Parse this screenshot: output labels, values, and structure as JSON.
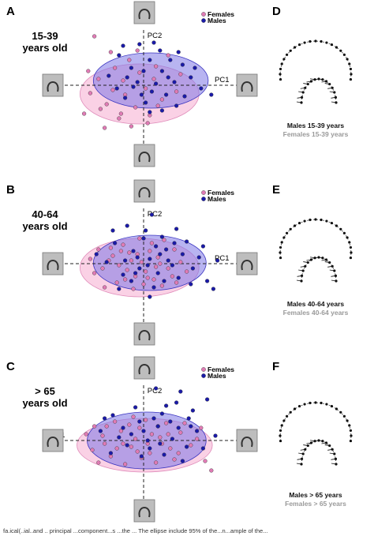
{
  "caption": "fa.ical(..ial..and .. principal ...component...s ...the ... The ellipse include 95% of the...n...ample of the...",
  "chart_data": [
    {
      "type": "scatter",
      "letter": "A",
      "age_line1": "15-39",
      "age_line2": "years old",
      "pc1_label": "PC1",
      "pc2_label": "PC2",
      "legend": [
        {
          "name": "Females",
          "color": "#e07bb5"
        },
        {
          "name": "Males",
          "color": "#1a1aa8"
        }
      ],
      "xlim": [
        -4,
        4
      ],
      "ylim": [
        -4,
        4
      ],
      "ellipses": [
        {
          "series": "Females",
          "cx": -0.2,
          "cy": -0.55,
          "rx": 2.9,
          "ry": 1.9,
          "color": "#f6b3d4"
        },
        {
          "series": "Males",
          "cx": 0.35,
          "cy": 0.3,
          "rx": 2.8,
          "ry": 1.75,
          "color": "#7d77e6"
        }
      ],
      "series": [
        {
          "name": "Females",
          "color": "#e07bb5",
          "points": [
            [
              -2.4,
              3.1
            ],
            [
              -1.6,
              2.1
            ],
            [
              -2.2,
              0.4
            ],
            [
              -2.6,
              -0.5
            ],
            [
              -1.8,
              -1.2
            ],
            [
              -1.2,
              -2.1
            ],
            [
              -0.6,
              -2.6
            ],
            [
              0.3,
              -1.9
            ],
            [
              -0.9,
              -0.6
            ],
            [
              -0.2,
              0.8
            ],
            [
              0.6,
              1.2
            ],
            [
              -1.4,
              1.1
            ],
            [
              0.9,
              -0.9
            ],
            [
              1.6,
              -0.4
            ],
            [
              -0.4,
              -1.4
            ],
            [
              -2.9,
              -1.8
            ],
            [
              -1.9,
              -2.7
            ],
            [
              -0.3,
              2.2
            ],
            [
              1.2,
              1.9
            ],
            [
              0.1,
              -0.2
            ],
            [
              -1.0,
              0.3
            ],
            [
              0.5,
              0.4
            ],
            [
              -1.5,
              -0.3
            ],
            [
              -0.7,
              1.6
            ],
            [
              1.8,
              0.7
            ],
            [
              -2.1,
              -1.5
            ],
            [
              0.2,
              -2.4
            ],
            [
              -1.1,
              -1.8
            ],
            [
              0.7,
              -1.3
            ],
            [
              -2.7,
              0.9
            ]
          ]
        },
        {
          "name": "Males",
          "color": "#1a1aa8",
          "points": [
            [
              -1.2,
              1.9
            ],
            [
              -0.6,
              1.1
            ],
            [
              0.3,
              1.6
            ],
            [
              0.9,
              0.9
            ],
            [
              1.5,
              0.2
            ],
            [
              1.9,
              1.3
            ],
            [
              2.3,
              0.5
            ],
            [
              2.8,
              -0.2
            ],
            [
              0.4,
              -0.4
            ],
            [
              -0.3,
              0.2
            ],
            [
              -0.9,
              -0.8
            ],
            [
              0.1,
              -1.1
            ],
            [
              1.1,
              -0.6
            ],
            [
              1.6,
              -1.3
            ],
            [
              -1.7,
              0.6
            ],
            [
              -0.2,
              2.6
            ],
            [
              0.8,
              2.2
            ],
            [
              1.3,
              1.6
            ],
            [
              2.0,
              -0.7
            ],
            [
              -0.5,
              -0.1
            ],
            [
              0.6,
              0.1
            ],
            [
              -1.3,
              -0.2
            ],
            [
              0.0,
              0.9
            ],
            [
              1.2,
              0.5
            ],
            [
              -0.8,
              0.5
            ],
            [
              0.3,
              -1.7
            ],
            [
              -0.1,
              -0.6
            ],
            [
              0.9,
              -1.6
            ],
            [
              2.5,
              1.1
            ],
            [
              3.3,
              -0.6
            ],
            [
              -1.0,
              2.5
            ],
            [
              1.7,
              2.1
            ],
            [
              0.5,
              2.7
            ]
          ]
        }
      ]
    },
    {
      "type": "scatter",
      "letter": "B",
      "age_line1": "40-64",
      "age_line2": "years old",
      "pc1_label": "PC1",
      "pc2_label": "PC2",
      "legend": [
        {
          "name": "Females",
          "color": "#e07bb5"
        },
        {
          "name": "Males",
          "color": "#1a1aa8"
        }
      ],
      "xlim": [
        -4,
        4
      ],
      "ylim": [
        -4,
        4
      ],
      "ellipses": [
        {
          "series": "Females",
          "cx": -0.2,
          "cy": -0.25,
          "rx": 2.9,
          "ry": 1.85,
          "color": "#f6b3d4"
        },
        {
          "series": "Males",
          "cx": 0.3,
          "cy": 0.05,
          "rx": 2.75,
          "ry": 1.75,
          "color": "#7d77e6"
        }
      ],
      "series": [
        {
          "name": "Females",
          "color": "#e07bb5",
          "points": [
            [
              -2.2,
              0.9
            ],
            [
              -1.7,
              0.2
            ],
            [
              -2.4,
              -0.6
            ],
            [
              -1.3,
              -1.2
            ],
            [
              -0.8,
              -0.4
            ],
            [
              -0.3,
              0.6
            ],
            [
              0.2,
              -0.9
            ],
            [
              0.7,
              0.4
            ],
            [
              1.2,
              -0.3
            ],
            [
              -1.0,
              1.2
            ],
            [
              -0.5,
              -1.6
            ],
            [
              0.4,
              1.3
            ],
            [
              1.5,
              0.9
            ],
            [
              -1.9,
              -1.5
            ],
            [
              0.9,
              -1.4
            ],
            [
              -0.1,
              0.1
            ],
            [
              -0.7,
              0.7
            ],
            [
              0.6,
              -0.2
            ],
            [
              -1.5,
              0.5
            ],
            [
              0.1,
              -0.5
            ],
            [
              1.8,
              0.1
            ],
            [
              -2.6,
              0.3
            ],
            [
              -0.4,
              -0.8
            ],
            [
              1.0,
              1.5
            ],
            [
              -1.2,
              -0.1
            ],
            [
              0.3,
              0.8
            ],
            [
              -0.9,
              -1.0
            ],
            [
              1.4,
              -0.8
            ],
            [
              2.1,
              -0.5
            ],
            [
              -0.2,
              1.6
            ],
            [
              0.0,
              -1.3
            ],
            [
              -1.6,
              1.0
            ],
            [
              0.8,
              0.0
            ],
            [
              -0.6,
              0.2
            ],
            [
              1.6,
              -1.2
            ],
            [
              -2.0,
              -0.3
            ],
            [
              0.5,
              -1.0
            ],
            [
              -1.1,
              0.8
            ]
          ]
        },
        {
          "name": "Males",
          "color": "#1a1aa8",
          "points": [
            [
              -0.8,
              2.4
            ],
            [
              0.4,
              3.1
            ],
            [
              1.6,
              2.2
            ],
            [
              -1.4,
              1.3
            ],
            [
              -0.5,
              0.8
            ],
            [
              0.3,
              0.3
            ],
            [
              1.1,
              0.9
            ],
            [
              1.9,
              0.6
            ],
            [
              2.4,
              -0.3
            ],
            [
              0.7,
              -0.6
            ],
            [
              -0.2,
              -0.3
            ],
            [
              -1.0,
              -0.7
            ],
            [
              0.0,
              1.6
            ],
            [
              0.9,
              1.7
            ],
            [
              1.4,
              -0.1
            ],
            [
              -0.6,
              -1.1
            ],
            [
              0.5,
              -1.5
            ],
            [
              1.7,
              -0.9
            ],
            [
              2.7,
              0.4
            ],
            [
              3.1,
              -1.1
            ],
            [
              3.4,
              -1.6
            ],
            [
              -1.8,
              0.1
            ],
            [
              0.2,
              -0.1
            ],
            [
              1.2,
              0.2
            ],
            [
              -0.3,
              0.4
            ],
            [
              0.6,
              1.1
            ],
            [
              -1.2,
              -1.6
            ],
            [
              2.1,
              1.4
            ],
            [
              0.1,
              2.1
            ],
            [
              -0.9,
              0.2
            ],
            [
              2.9,
              1.1
            ],
            [
              1.0,
              -1.1
            ],
            [
              -0.4,
              -0.6
            ],
            [
              0.8,
              0.6
            ],
            [
              -2.3,
              0.6
            ],
            [
              1.5,
              1.3
            ],
            [
              2.3,
              -1.3
            ],
            [
              0.3,
              -2.1
            ],
            [
              3.6,
              0.2
            ],
            [
              -1.5,
              2.1
            ]
          ]
        }
      ]
    },
    {
      "type": "scatter",
      "letter": "C",
      "age_line1": "> 65",
      "age_line2": "years old",
      "pc1_label": "PC1",
      "pc2_label": "PC2",
      "legend": [
        {
          "name": "Females",
          "color": "#e07bb5"
        },
        {
          "name": "Males",
          "color": "#1a1aa8"
        }
      ],
      "xlim": [
        -4,
        4
      ],
      "ylim": [
        -4,
        4
      ],
      "ellipses": [
        {
          "series": "Females",
          "cx": 0.05,
          "cy": -0.3,
          "rx": 3.3,
          "ry": 1.7,
          "color": "#f6b3d4"
        },
        {
          "series": "Males",
          "cx": 0.15,
          "cy": 0.0,
          "rx": 2.9,
          "ry": 1.8,
          "color": "#7d77e6"
        }
      ],
      "series": [
        {
          "name": "Females",
          "color": "#e07bb5",
          "points": [
            [
              -2.5,
              -0.6
            ],
            [
              -2.0,
              0.3
            ],
            [
              -1.6,
              -1.0
            ],
            [
              -1.1,
              0.6
            ],
            [
              -0.6,
              -0.4
            ],
            [
              -0.2,
              0.8
            ],
            [
              0.3,
              -0.8
            ],
            [
              0.8,
              0.2
            ],
            [
              1.3,
              -0.5
            ],
            [
              1.8,
              0.5
            ],
            [
              2.3,
              -0.3
            ],
            [
              -1.4,
              1.2
            ],
            [
              -0.9,
              -1.5
            ],
            [
              0.1,
              1.3
            ],
            [
              0.6,
              -1.4
            ],
            [
              1.1,
              1.1
            ],
            [
              -2.2,
              -1.4
            ],
            [
              -0.4,
              0.1
            ],
            [
              0.4,
              0.4
            ],
            [
              -1.0,
              -0.2
            ],
            [
              1.5,
              -1.2
            ],
            [
              2.0,
              1.1
            ],
            [
              -2.8,
              0.4
            ],
            [
              -1.8,
              0.9
            ],
            [
              -0.1,
              -1.1
            ],
            [
              0.9,
              -0.2
            ],
            [
              2.6,
              0.1
            ],
            [
              3.0,
              -1.3
            ],
            [
              3.3,
              -1.9
            ],
            [
              -1.3,
              -0.5
            ],
            [
              0.2,
              -0.2
            ],
            [
              -0.7,
              1.0
            ],
            [
              1.7,
              -0.8
            ],
            [
              -1.9,
              -0.2
            ],
            [
              0.7,
              0.9
            ],
            [
              -0.3,
              -0.7
            ],
            [
              1.2,
              0.4
            ],
            [
              -2.4,
              0.9
            ],
            [
              2.8,
              0.8
            ],
            [
              -0.5,
              1.5
            ]
          ]
        },
        {
          "name": "Males",
          "color": "#1a1aa8",
          "points": [
            [
              -1.5,
              1.6
            ],
            [
              -0.4,
              2.1
            ],
            [
              0.9,
              1.7
            ],
            [
              1.6,
              2.4
            ],
            [
              2.4,
              1.9
            ],
            [
              3.1,
              2.6
            ],
            [
              -1.0,
              0.8
            ],
            [
              0.0,
              0.6
            ],
            [
              0.7,
              0.9
            ],
            [
              1.4,
              0.1
            ],
            [
              2.1,
              -0.4
            ],
            [
              2.6,
              0.6
            ],
            [
              -0.8,
              -0.3
            ],
            [
              0.3,
              -0.5
            ],
            [
              1.0,
              -0.9
            ],
            [
              1.9,
              -1.3
            ],
            [
              -1.6,
              -0.8
            ],
            [
              -2.1,
              0.6
            ],
            [
              -0.2,
              1.2
            ],
            [
              0.5,
              1.4
            ],
            [
              1.3,
              1.2
            ],
            [
              -1.2,
              0.2
            ],
            [
              0.2,
              0.0
            ],
            [
              1.7,
              0.8
            ],
            [
              2.3,
              0.9
            ],
            [
              -0.6,
              0.4
            ],
            [
              0.8,
              -0.2
            ],
            [
              1.8,
              3.1
            ],
            [
              0.6,
              3.3
            ],
            [
              2.9,
              -0.5
            ],
            [
              3.5,
              0.3
            ],
            [
              -1.9,
              1.4
            ],
            [
              -0.1,
              -1.0
            ],
            [
              1.1,
              2.2
            ],
            [
              2.2,
              1.4
            ]
          ]
        }
      ]
    }
  ],
  "outline_panels": [
    {
      "letter": "D",
      "caption_males": "Males 15-39 years",
      "caption_females": "Females 15-39 years"
    },
    {
      "letter": "E",
      "caption_males": "Males 40-64 years",
      "caption_females": "Females 40-64 years"
    },
    {
      "letter": "F",
      "caption_males": "Males > 65 years",
      "caption_females": "Females > 65 years"
    }
  ]
}
